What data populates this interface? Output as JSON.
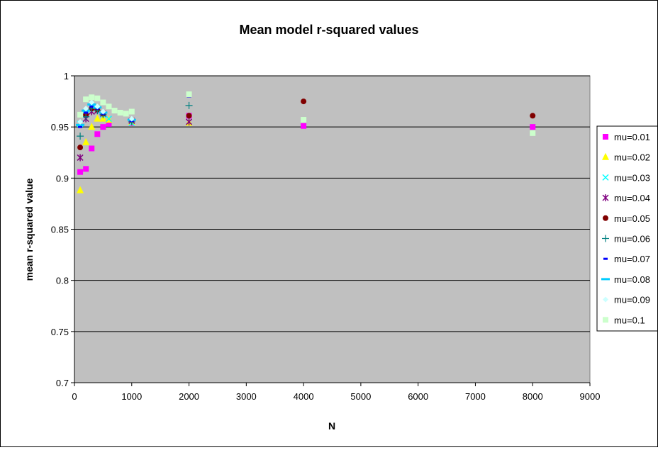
{
  "chart_data": {
    "type": "scatter",
    "title": "Mean model r-squared values",
    "xlabel": "N",
    "ylabel": "mean r-squared value",
    "xlim": [
      0,
      9000
    ],
    "ylim": [
      0.7,
      1.0
    ],
    "xticks": [
      "0",
      "1000",
      "2000",
      "3000",
      "4000",
      "5000",
      "6000",
      "7000",
      "8000",
      "9000"
    ],
    "yticks": [
      "0.7",
      "0.75",
      "0.8",
      "0.85",
      "0.9",
      "0.95",
      "1"
    ],
    "grid": "horizontal",
    "legend_position": "right",
    "plot_background": "#c0c0c0",
    "series": [
      {
        "name": "mu=0.01",
        "color": "#ff00ff",
        "marker": "square",
        "x": [
          100,
          200,
          300,
          400,
          500,
          600,
          1000,
          2000,
          4000,
          8000
        ],
        "y": [
          0.906,
          0.909,
          0.929,
          0.943,
          0.95,
          0.953,
          0.954,
          0.961,
          0.951,
          0.95
        ]
      },
      {
        "name": "mu=0.02",
        "color": "#ffff00",
        "marker": "triangle",
        "x": [
          100,
          200,
          300,
          400,
          500,
          600,
          1000,
          2000
        ],
        "y": [
          0.888,
          0.935,
          0.95,
          0.958,
          0.958,
          0.957,
          0.955,
          0.954
        ]
      },
      {
        "name": "mu=0.03",
        "color": "#00ffff",
        "marker": "x",
        "x": [
          100,
          200,
          300,
          400,
          500,
          600,
          1000
        ],
        "y": [
          0.953,
          0.962,
          0.97,
          0.968,
          0.962,
          0.958,
          0.954
        ]
      },
      {
        "name": "mu=0.04",
        "color": "#800080",
        "marker": "star",
        "x": [
          100,
          200,
          300,
          400,
          500,
          1000,
          2000
        ],
        "y": [
          0.92,
          0.958,
          0.965,
          0.966,
          0.963,
          0.956,
          0.955
        ]
      },
      {
        "name": "mu=0.05",
        "color": "#800000",
        "marker": "circle",
        "x": [
          100,
          200,
          300,
          400,
          500,
          1000,
          2000,
          4000,
          8000
        ],
        "y": [
          0.93,
          0.962,
          0.968,
          0.967,
          0.963,
          0.957,
          0.961,
          0.975,
          0.961
        ]
      },
      {
        "name": "mu=0.06",
        "color": "#008080",
        "marker": "plus",
        "x": [
          100,
          200,
          300,
          400,
          500,
          1000,
          2000
        ],
        "y": [
          0.941,
          0.96,
          0.968,
          0.966,
          0.962,
          0.955,
          0.971
        ]
      },
      {
        "name": "mu=0.07",
        "color": "#0000ff",
        "marker": "dash",
        "x": [
          100,
          200,
          300,
          400,
          500,
          1000,
          2000
        ],
        "y": [
          0.95,
          0.964,
          0.97,
          0.968,
          0.963,
          0.956,
          0.98
        ]
      },
      {
        "name": "mu=0.08",
        "color": "#00ccff",
        "marker": "longdash",
        "x": [
          100,
          200,
          300,
          400,
          500,
          1000
        ],
        "y": [
          0.952,
          0.966,
          0.972,
          0.969,
          0.964,
          0.957
        ]
      },
      {
        "name": "mu=0.09",
        "color": "#ccffff",
        "marker": "diamond",
        "x": [
          100,
          200,
          300,
          400,
          500,
          1000
        ],
        "y": [
          0.955,
          0.968,
          0.974,
          0.97,
          0.965,
          0.958
        ]
      },
      {
        "name": "mu=0.1",
        "color": "#ccffcc",
        "marker": "square",
        "x": [
          100,
          200,
          300,
          400,
          500,
          600,
          700,
          800,
          900,
          1000,
          2000,
          4000,
          8000
        ],
        "y": [
          0.962,
          0.977,
          0.979,
          0.978,
          0.974,
          0.97,
          0.966,
          0.964,
          0.963,
          0.965,
          0.982,
          0.957,
          0.944
        ]
      }
    ]
  }
}
